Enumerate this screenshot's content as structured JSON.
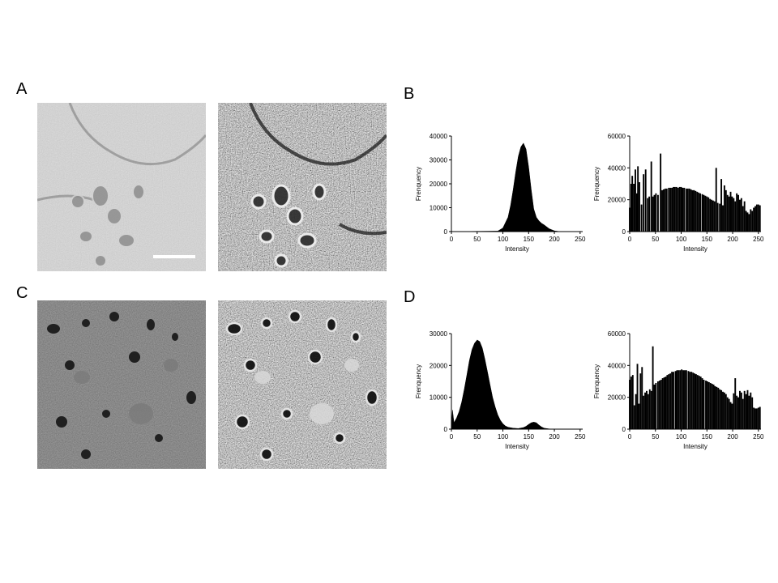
{
  "panel_labels": {
    "a": "A",
    "b": "B",
    "c": "C",
    "d": "D"
  },
  "micrographs": [
    {
      "id": "A-original",
      "tone": "low-contrast light gray",
      "mean_gray": "#a3a3a3"
    },
    {
      "id": "A-equalized",
      "tone": "high-contrast gray",
      "mean_gray": "#777777"
    },
    {
      "id": "C-original",
      "tone": "dark low-contrast",
      "mean_gray": "#3d3d3d"
    },
    {
      "id": "C-equalized",
      "tone": "high-contrast gray",
      "mean_gray": "#7a7a7a"
    }
  ],
  "scalebar_present": true,
  "chart_data": [
    {
      "panel": "B",
      "type": "area",
      "xlabel": "Intensity",
      "ylabel": "Frenquency",
      "xlim": [
        0,
        255
      ],
      "ylim": [
        0,
        40000
      ],
      "xticks": [
        "0",
        "50",
        "100",
        "150",
        "200",
        "250"
      ],
      "yticks": [
        "0",
        "10000",
        "20000",
        "30000",
        "40000"
      ],
      "x": [
        0,
        90,
        100,
        110,
        115,
        120,
        125,
        130,
        135,
        140,
        145,
        150,
        155,
        160,
        165,
        170,
        175,
        180,
        190,
        200,
        210,
        255
      ],
      "values": [
        0,
        200,
        1500,
        6000,
        11000,
        17500,
        25000,
        31500,
        35500,
        37000,
        34500,
        27000,
        17500,
        9500,
        6000,
        4500,
        3500,
        2800,
        1200,
        300,
        50,
        0
      ]
    },
    {
      "panel": "B",
      "type": "bar",
      "xlabel": "Intensity",
      "ylabel": "Frenquency",
      "xlim": [
        0,
        255
      ],
      "ylim": [
        0,
        60000
      ],
      "xticks": [
        "0",
        "50",
        "100",
        "150",
        "200",
        "250"
      ],
      "yticks": [
        "0",
        "20000",
        "40000",
        "60000"
      ],
      "x": [
        0,
        3,
        5,
        8,
        11,
        14,
        16,
        19,
        23,
        27,
        31,
        35,
        38,
        42,
        45,
        48,
        51,
        55,
        60,
        63,
        66,
        69,
        72,
        76,
        79,
        82,
        85,
        88,
        91,
        94,
        97,
        100,
        103,
        106,
        110,
        113,
        116,
        119,
        122,
        125,
        128,
        131,
        134,
        137,
        141,
        144,
        147,
        150,
        153,
        156,
        159,
        162,
        165,
        168,
        171,
        175,
        178,
        181,
        184,
        187,
        190,
        193,
        196,
        199,
        202,
        205,
        208,
        211,
        214,
        217,
        220,
        223,
        226,
        229,
        232,
        235,
        238,
        241,
        244,
        247,
        250,
        253
      ],
      "values": [
        15000,
        30000,
        35000,
        30000,
        39000,
        24000,
        41000,
        31000,
        17000,
        36000,
        39000,
        21000,
        22000,
        44000,
        22000,
        23000,
        24000,
        23000,
        49000,
        26000,
        26500,
        27000,
        27000,
        27500,
        27500,
        27500,
        28000,
        28000,
        28000,
        27500,
        28000,
        28000,
        27500,
        27500,
        27000,
        27000,
        27000,
        26500,
        26000,
        26000,
        25500,
        25000,
        24500,
        24000,
        23500,
        23000,
        22500,
        22000,
        21500,
        20500,
        20000,
        19500,
        19000,
        40000,
        18000,
        17500,
        33000,
        16500,
        29000,
        26000,
        23000,
        22000,
        25000,
        22000,
        21000,
        19000,
        24000,
        23000,
        20000,
        21000,
        16000,
        19000,
        13000,
        12000,
        11000,
        14000,
        13000,
        15000,
        16000,
        17000,
        17000,
        16500
      ]
    },
    {
      "panel": "D",
      "type": "area",
      "xlabel": "Intensity",
      "ylabel": "Frenquency",
      "xlim": [
        0,
        255
      ],
      "ylim": [
        0,
        30000
      ],
      "xticks": [
        "0",
        "50",
        "100",
        "150",
        "200",
        "250"
      ],
      "yticks": [
        "0",
        "10000",
        "20000",
        "30000"
      ],
      "x": [
        0,
        2,
        5,
        10,
        15,
        20,
        25,
        30,
        35,
        40,
        45,
        50,
        55,
        60,
        65,
        70,
        75,
        80,
        85,
        90,
        95,
        100,
        105,
        110,
        120,
        130,
        140,
        145,
        150,
        155,
        160,
        165,
        170,
        175,
        180,
        190,
        200,
        255
      ],
      "values": [
        0,
        6000,
        2000,
        3500,
        5500,
        8500,
        12500,
        17000,
        21500,
        25000,
        27000,
        28000,
        27500,
        25500,
        22000,
        18000,
        14000,
        10000,
        7000,
        4500,
        2800,
        1700,
        1000,
        600,
        300,
        200,
        500,
        900,
        1500,
        2000,
        2200,
        2000,
        1300,
        700,
        300,
        80,
        0,
        0
      ]
    },
    {
      "panel": "D",
      "type": "bar",
      "xlabel": "Intensity",
      "ylabel": "Frenquency",
      "xlim": [
        0,
        255
      ],
      "ylim": [
        0,
        60000
      ],
      "xticks": [
        "0",
        "50",
        "100",
        "150",
        "200",
        "250"
      ],
      "yticks": [
        "0",
        "20000",
        "40000",
        "60000"
      ],
      "x": [
        0,
        3,
        6,
        9,
        12,
        15,
        18,
        21,
        24,
        27,
        30,
        33,
        36,
        39,
        42,
        45,
        48,
        51,
        55,
        58,
        61,
        64,
        67,
        70,
        73,
        76,
        79,
        82,
        85,
        89,
        92,
        95,
        98,
        101,
        104,
        107,
        110,
        114,
        117,
        120,
        123,
        126,
        129,
        132,
        135,
        138,
        141,
        144,
        148,
        151,
        154,
        157,
        160,
        163,
        166,
        169,
        172,
        175,
        178,
        181,
        184,
        187,
        190,
        193,
        196,
        199,
        202,
        205,
        208,
        211,
        214,
        217,
        220,
        223,
        226,
        229,
        232,
        235,
        238,
        241,
        244,
        247,
        250,
        253
      ],
      "values": [
        31000,
        33000,
        34000,
        15000,
        22000,
        41000,
        16000,
        35000,
        39000,
        21000,
        23000,
        24000,
        22000,
        25000,
        24000,
        52000,
        28000,
        29000,
        30000,
        30500,
        31000,
        32000,
        32500,
        33000,
        34000,
        34500,
        35000,
        36000,
        36000,
        36500,
        37000,
        37000,
        37000,
        37500,
        37000,
        37000,
        37000,
        36500,
        36000,
        36000,
        35500,
        35000,
        34500,
        34000,
        33500,
        33000,
        32000,
        31000,
        30500,
        30000,
        29500,
        29000,
        28500,
        28000,
        27000,
        26500,
        26000,
        25000,
        24500,
        23500,
        23000,
        22000,
        20000,
        19000,
        17000,
        16000,
        22500,
        32000,
        21000,
        20000,
        24000,
        23000,
        19000,
        24000,
        22000,
        24500,
        21000,
        23000,
        20000,
        13500,
        13000,
        13000,
        13500,
        14000
      ]
    }
  ]
}
